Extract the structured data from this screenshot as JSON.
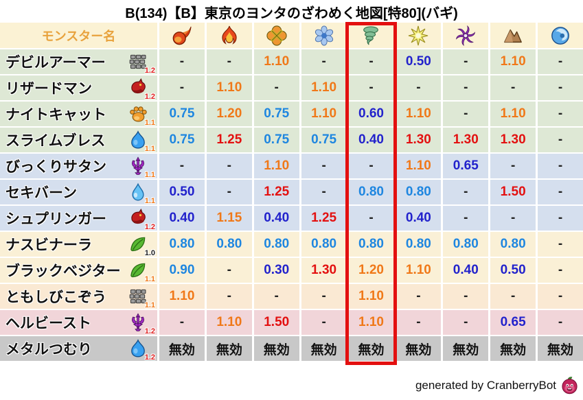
{
  "title": "B(134)【B】東京のヨンタのざわめく地図[特80](バギ)",
  "footer": {
    "text": "generated by CranberryBot",
    "icon": "cranberry-slime-icon"
  },
  "table": {
    "name_header": "モンスター名",
    "columns": [
      "fireball-icon",
      "flame-icon",
      "burst-icon",
      "snowflake-icon",
      "tornado-icon",
      "star-icon",
      "pinwheel-icon",
      "mountain-icon",
      "wave-icon"
    ],
    "highlighted_column_index": 4,
    "rows": [
      {
        "name": "デビルアーマー",
        "family_icon": "brick-icon",
        "multiplier": "1.2",
        "multiplier_color": "#E02020",
        "group": "green",
        "values": [
          "-",
          "-",
          "1.10",
          "-",
          "-",
          "0.50",
          "-",
          "1.10",
          "-"
        ]
      },
      {
        "name": "リザードマン",
        "family_icon": "dragon-icon",
        "multiplier": "1.2",
        "multiplier_color": "#E02020",
        "group": "green",
        "values": [
          "-",
          "1.10",
          "-",
          "1.10",
          "-",
          "-",
          "-",
          "-",
          "-"
        ]
      },
      {
        "name": "ナイトキャット",
        "family_icon": "paw-icon",
        "multiplier": "1.1",
        "multiplier_color": "#F07818",
        "group": "green",
        "values": [
          "0.75",
          "1.20",
          "0.75",
          "1.10",
          "0.60",
          "1.10",
          "-",
          "1.10",
          "-"
        ]
      },
      {
        "name": "スライムブレス",
        "family_icon": "slime-icon",
        "multiplier": "1.1",
        "multiplier_color": "#F07818",
        "group": "green",
        "values": [
          "0.75",
          "1.25",
          "0.75",
          "0.75",
          "0.40",
          "1.30",
          "1.30",
          "1.30",
          "-"
        ]
      },
      {
        "name": "びっくりサタン",
        "family_icon": "demon-icon",
        "multiplier": "1.1",
        "multiplier_color": "#F07818",
        "group": "blue",
        "values": [
          "-",
          "-",
          "1.10",
          "-",
          "-",
          "1.10",
          "0.65",
          "-",
          "-"
        ]
      },
      {
        "name": "セキバーン",
        "family_icon": "waterdrop-icon",
        "multiplier": "1.1",
        "multiplier_color": "#F07818",
        "group": "blue",
        "values": [
          "0.50",
          "-",
          "1.25",
          "-",
          "0.80",
          "0.80",
          "-",
          "1.50",
          "-"
        ]
      },
      {
        "name": "シュプリンガー",
        "family_icon": "dragon-icon",
        "multiplier": "1.2",
        "multiplier_color": "#E02020",
        "group": "blue",
        "values": [
          "0.40",
          "1.15",
          "0.40",
          "1.25",
          "-",
          "0.40",
          "-",
          "-",
          "-"
        ]
      },
      {
        "name": "ナスビナーラ",
        "family_icon": "leaf-icon",
        "multiplier": "1.0",
        "multiplier_color": "#222222",
        "group": "cream",
        "values": [
          "0.80",
          "0.80",
          "0.80",
          "0.80",
          "0.80",
          "0.80",
          "0.80",
          "0.80",
          "-"
        ]
      },
      {
        "name": "ブラックベジター",
        "family_icon": "leaf-icon",
        "multiplier": "1.1",
        "multiplier_color": "#F07818",
        "group": "cream",
        "values": [
          "0.90",
          "-",
          "0.30",
          "1.30",
          "1.20",
          "1.10",
          "0.40",
          "0.50",
          "-"
        ]
      },
      {
        "name": "ともしびこぞう",
        "family_icon": "brick-icon",
        "multiplier": "1.1",
        "multiplier_color": "#F07818",
        "group": "peach",
        "values": [
          "1.10",
          "-",
          "-",
          "-",
          "1.10",
          "-",
          "-",
          "-",
          "-"
        ]
      },
      {
        "name": "ヘルビースト",
        "family_icon": "demon-icon",
        "multiplier": "1.2",
        "multiplier_color": "#E02020",
        "group": "pink",
        "values": [
          "-",
          "1.10",
          "1.50",
          "-",
          "1.10",
          "-",
          "-",
          "0.65",
          "-"
        ]
      },
      {
        "name": "メタルつむり",
        "family_icon": "slime-icon",
        "multiplier": "1.2",
        "multiplier_color": "#E02020",
        "group": "gray",
        "values": [
          "無効",
          "無効",
          "無効",
          "無効",
          "無効",
          "無効",
          "無効",
          "無効",
          "無効"
        ]
      }
    ]
  },
  "colors": {
    "header_bg": "#FBF2D4",
    "header_text": "#E8A23C",
    "row_green": "#DEE8D5",
    "row_blue": "#D5DFEE",
    "row_cream": "#FAF0D6",
    "row_peach": "#FAE9D3",
    "row_pink": "#F1D5D9",
    "row_gray": "#C8C8C8",
    "value_strong_resist": "#2222CC",
    "value_resist": "#1E86E0",
    "value_weak": "#F07818",
    "value_very_weak": "#E31010",
    "value_dash": "#222222",
    "value_immune": "#111111",
    "highlight_box": "#E31010"
  }
}
